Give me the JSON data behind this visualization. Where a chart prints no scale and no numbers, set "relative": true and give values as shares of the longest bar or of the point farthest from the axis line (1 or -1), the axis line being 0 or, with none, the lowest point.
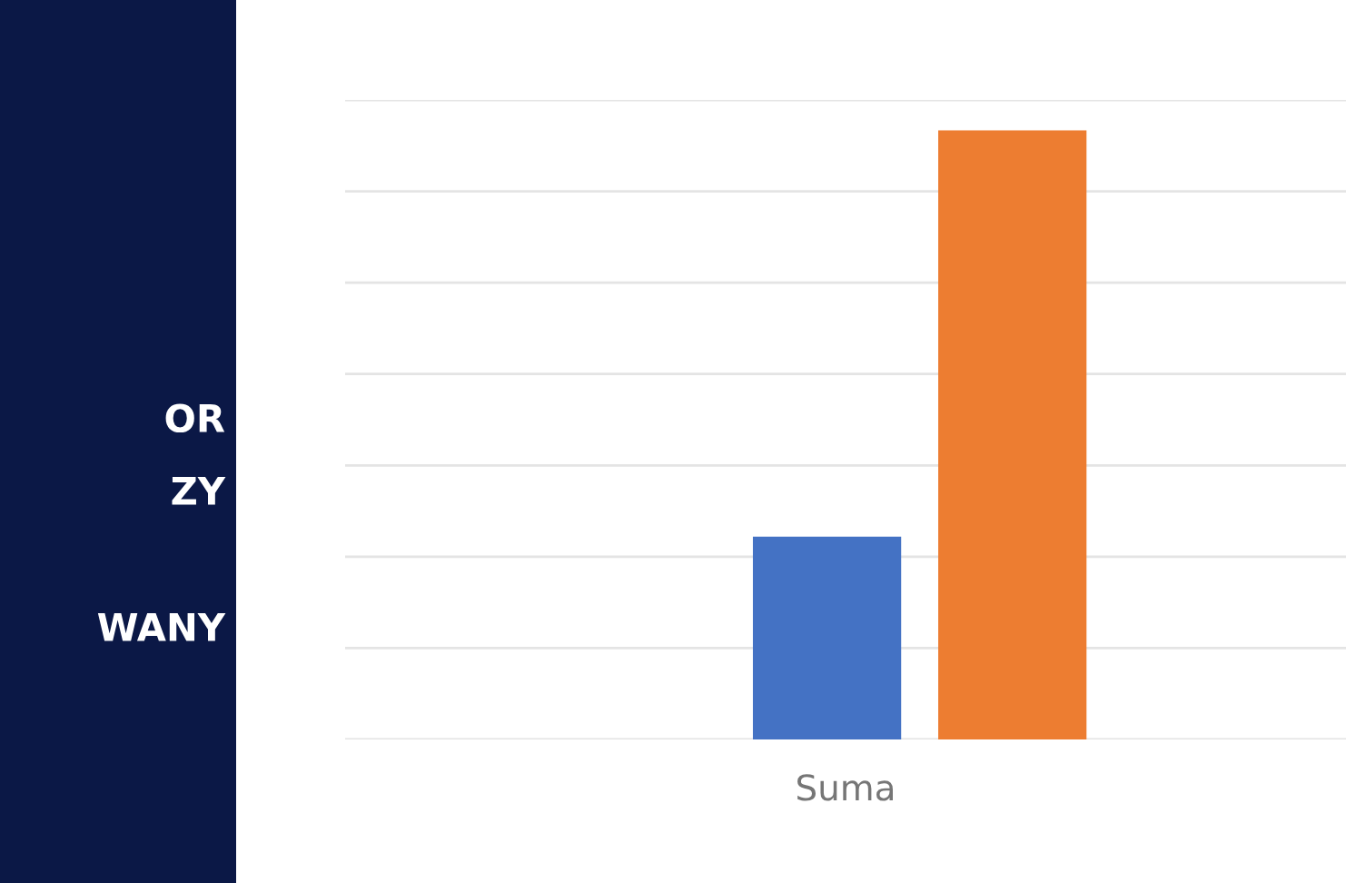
{
  "chart_data": {
    "type": "bar",
    "categories": [
      null,
      null
    ],
    "xlabel": "Suma",
    "relative": true,
    "grid": "y",
    "values": [
      0.333,
      1
    ],
    "colors": [
      "#4472c4",
      "#ed7d31"
    ],
    "annotations": [
      "OR",
      "ZY",
      "WANY"
    ]
  }
}
